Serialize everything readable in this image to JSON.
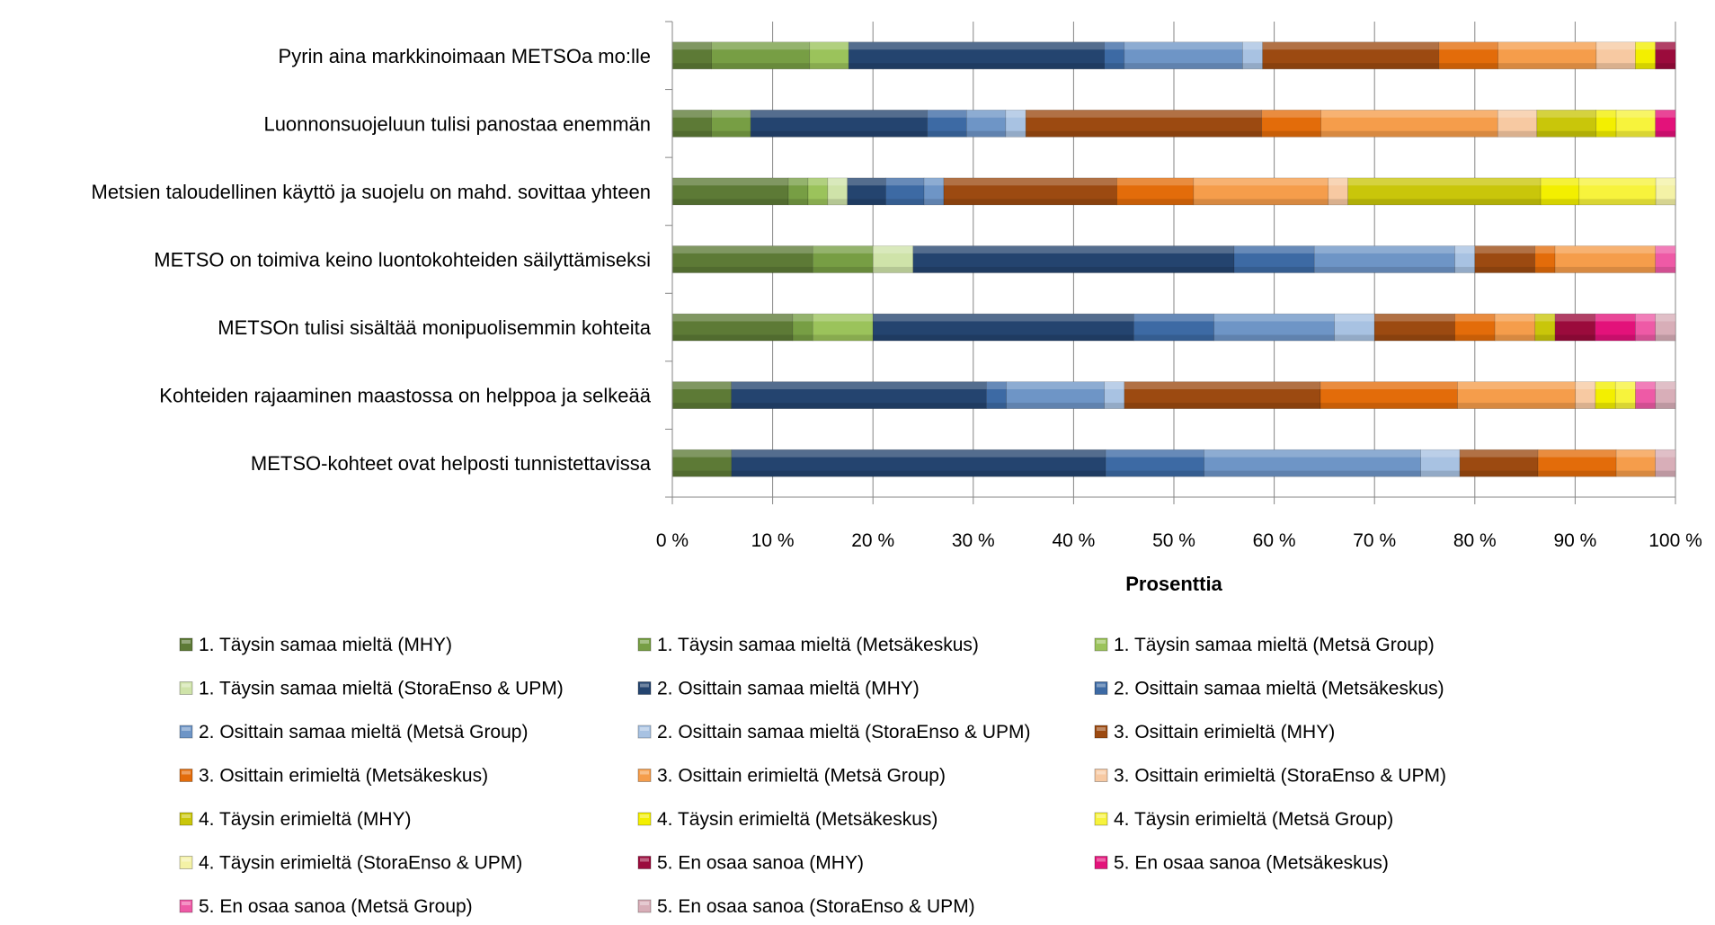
{
  "chart_data": {
    "type": "bar",
    "orientation": "horizontal",
    "stacked": "percent",
    "categories": [
      "Pyrin aina markkinoimaan METSOa mo:lle",
      "Luonnonsuojeluun tulisi panostaa enemmän",
      "Metsien taloudellinen käyttö ja suojelu on mahd. sovittaa yhteen",
      "METSO on toimiva keino luontokohteiden säilyttämiseksi",
      "METSOn tulisi sisältää monipuolisemmin kohteita",
      "Kohteiden rajaaminen maastossa on helppoa ja selkeää",
      "METSO-kohteet ovat helposti tunnistettavissa"
    ],
    "xlabel": "Prosenttia",
    "xlim": [
      0,
      100
    ],
    "x_ticks": [
      "0 %",
      "10 %",
      "20 %",
      "30 %",
      "40 %",
      "50 %",
      "60 %",
      "70 %",
      "80 %",
      "90 %",
      "100 %"
    ],
    "grid": "vertical",
    "legend_position": "bottom",
    "series": [
      {
        "name": "1. Täysin samaa mieltä (MHY)",
        "color": "#5d7a36",
        "values": [
          3.9,
          3.9,
          11.8,
          14.0,
          12.0,
          5.9,
          5.9
        ]
      },
      {
        "name": "1. Täysin samaa mieltä (Metsäkeskus)",
        "color": "#779e44",
        "values": [
          9.8,
          3.9,
          2.0,
          6.0,
          2.0,
          0,
          0
        ]
      },
      {
        "name": "1. Täysin samaa mieltä (Metsä Group)",
        "color": "#9bc35b",
        "values": [
          3.9,
          0,
          2.0,
          0,
          6.0,
          0,
          0
        ]
      },
      {
        "name": "1. Täysin samaa mieltä (StoraEnso & UPM)",
        "color": "#cfe3a9",
        "values": [
          0,
          0,
          2.0,
          4.0,
          0,
          0,
          0
        ]
      },
      {
        "name": "2. Osittain samaa mieltä (MHY)",
        "color": "#24446f",
        "values": [
          25.5,
          17.6,
          3.9,
          32.0,
          26.0,
          25.5,
          37.3
        ]
      },
      {
        "name": "2. Osittain samaa mieltä (Metsäkeskus)",
        "color": "#3d6aa4",
        "values": [
          2.0,
          3.9,
          3.9,
          8.0,
          8.0,
          2.0,
          9.8
        ]
      },
      {
        "name": "2. Osittain samaa mieltä (Metsä Group)",
        "color": "#6e95c6",
        "values": [
          11.8,
          3.9,
          2.0,
          14.0,
          12.0,
          9.8,
          21.6
        ]
      },
      {
        "name": "2. Osittain samaa mieltä (StoraEnso & UPM)",
        "color": "#a8c2e2",
        "values": [
          2.0,
          2.0,
          0,
          2.0,
          4.0,
          2.0,
          3.9
        ]
      },
      {
        "name": "3. Osittain erimieltä (MHY)",
        "color": "#9c4a11",
        "values": [
          17.6,
          23.5,
          17.6,
          6.0,
          8.0,
          19.6,
          7.8
        ]
      },
      {
        "name": "3. Osittain erimieltä (Metsäkeskus)",
        "color": "#e36c0a",
        "values": [
          5.9,
          5.9,
          7.8,
          2.0,
          4.0,
          13.7,
          7.8
        ]
      },
      {
        "name": "3. Osittain erimieltä (Metsä Group)",
        "color": "#f59d4b",
        "values": [
          9.8,
          17.6,
          13.7,
          10.0,
          4.0,
          11.8,
          3.9
        ]
      },
      {
        "name": "3. Osittain erimieltä (StoraEnso & UPM)",
        "color": "#f7c9a2",
        "values": [
          3.9,
          3.9,
          2.0,
          0,
          0,
          2.0,
          0
        ]
      },
      {
        "name": "4. Täysin erimieltä (MHY)",
        "color": "#c9c60a",
        "values": [
          0,
          5.9,
          19.6,
          0,
          2.0,
          0,
          0
        ]
      },
      {
        "name": "4. Täysin erimieltä (Metsäkeskus)",
        "color": "#f3ef00",
        "values": [
          2.0,
          2.0,
          3.9,
          0,
          0,
          2.0,
          0
        ]
      },
      {
        "name": "4. Täysin erimieltä (Metsä Group)",
        "color": "#f7f33c",
        "values": [
          0,
          3.9,
          7.8,
          0,
          0,
          2.0,
          0
        ]
      },
      {
        "name": "4. Täysin erimieltä (StoraEnso & UPM)",
        "color": "#f4f2a6",
        "values": [
          0,
          0,
          2.0,
          0,
          0,
          0,
          0
        ]
      },
      {
        "name": "5. En osaa sanoa (MHY)",
        "color": "#9b0b3c",
        "values": [
          2.0,
          0,
          0,
          0,
          4.0,
          0,
          0
        ]
      },
      {
        "name": "5. En osaa sanoa (Metsäkeskus)",
        "color": "#e3127a",
        "values": [
          0,
          2.0,
          0,
          0,
          4.0,
          0,
          0
        ]
      },
      {
        "name": "5. En osaa sanoa (Metsä Group)",
        "color": "#ee5aa6",
        "values": [
          0,
          0,
          0,
          2.0,
          2.0,
          2.0,
          0
        ]
      },
      {
        "name": "5. En osaa sanoa (StoraEnso & UPM)",
        "color": "#d8aeb8",
        "values": [
          0,
          0,
          0,
          0,
          2.0,
          2.0,
          2.0
        ]
      }
    ]
  }
}
